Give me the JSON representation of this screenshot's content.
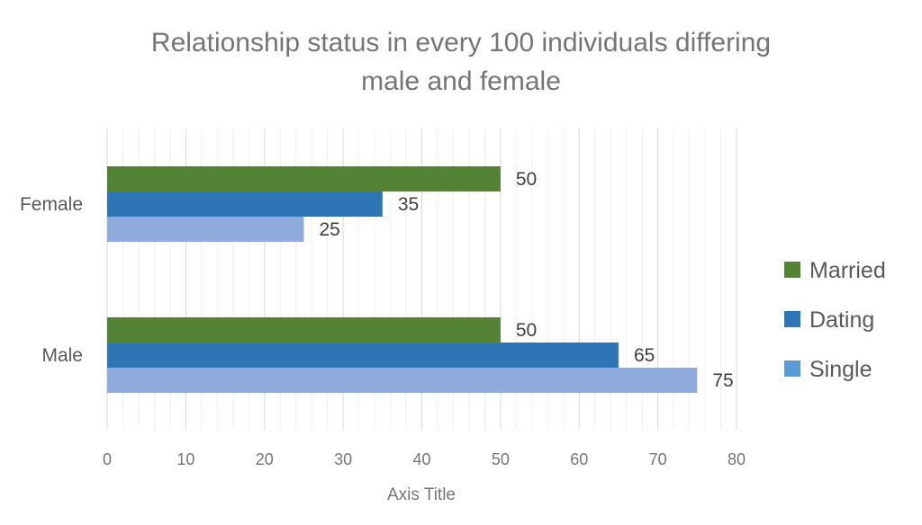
{
  "chart_data": {
    "type": "bar",
    "orientation": "horizontal",
    "title": "Relationship status in every 100 individuals differing male and female",
    "title_lines": [
      "Relationship status in every 100 individuals differing",
      "male and female"
    ],
    "xlabel": "Axis Title",
    "ylabel": "",
    "xlim": [
      0,
      80
    ],
    "x_ticks": [
      "0",
      "10",
      "20",
      "30",
      "40",
      "50",
      "60",
      "70",
      "80"
    ],
    "categories": [
      "Female",
      "Male"
    ],
    "series": [
      {
        "name": "Married",
        "values": [
          50,
          50
        ],
        "color": "#548235"
      },
      {
        "name": "Dating",
        "values": [
          35,
          65
        ],
        "color": "#2E75B6"
      },
      {
        "name": "Single",
        "values": [
          25,
          75
        ],
        "color": "#8FAADC"
      }
    ],
    "legend_position": "right",
    "legend_swatch_colors": [
      "#548235",
      "#2E75B6",
      "#5B9BD5"
    ],
    "grid": true,
    "data_labels": true
  }
}
